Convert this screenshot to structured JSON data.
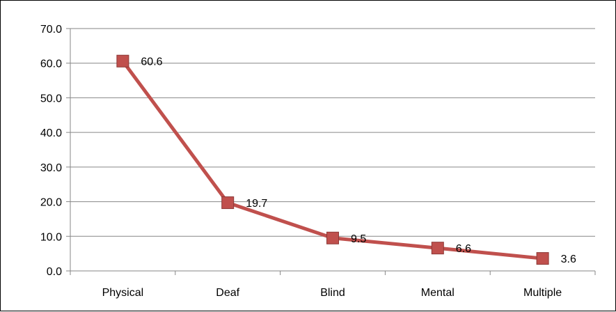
{
  "chart_data": {
    "type": "line",
    "categories": [
      "Physical",
      "Deaf",
      "Blind",
      "Mental",
      "Multiple"
    ],
    "series": [
      {
        "values": [
          60.6,
          19.7,
          9.5,
          6.6,
          3.6
        ],
        "color": "#C0504D",
        "marker": "square"
      }
    ],
    "data_labels": [
      "60.6",
      "19.7",
      "9.5",
      "6.6",
      "3.6"
    ],
    "y_ticks": [
      "0.0",
      "10.0",
      "20.0",
      "30.0",
      "40.0",
      "50.0",
      "60.0",
      "70.0"
    ],
    "ylim": [
      0,
      70
    ],
    "y_step": 10,
    "grid": true,
    "gridline_color": "#868686",
    "title": "",
    "xlabel": "",
    "ylabel": ""
  }
}
